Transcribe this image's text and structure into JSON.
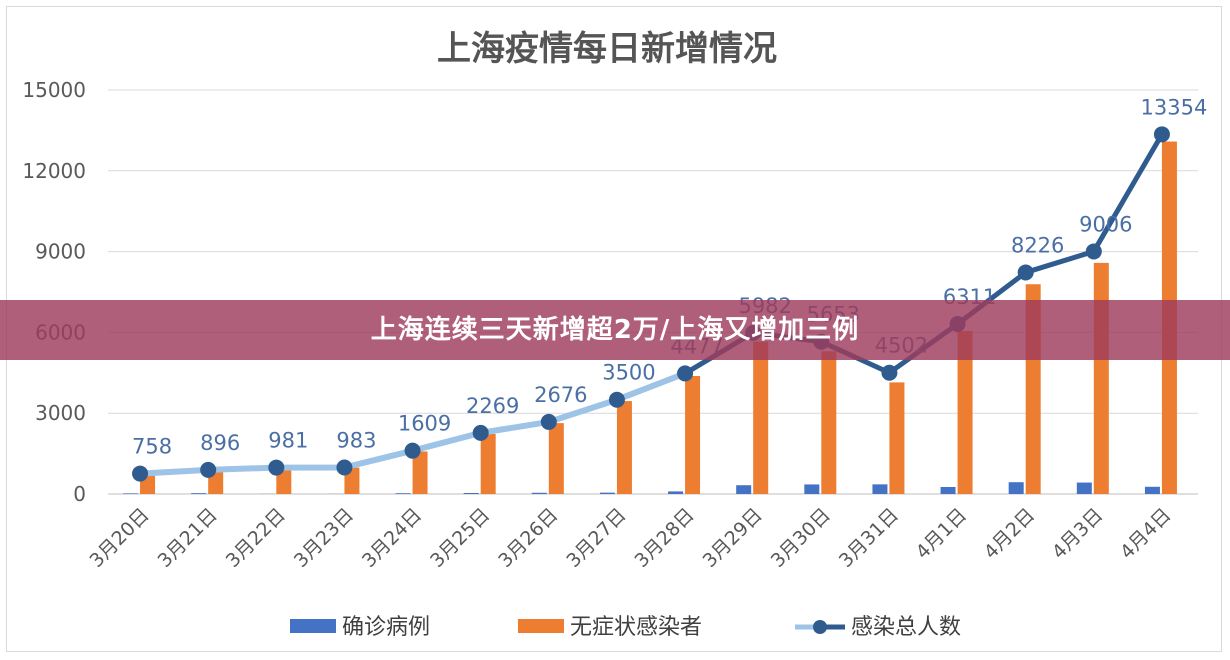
{
  "banner": {
    "text": "上海连续三天新增超2万/上海又增加三例"
  },
  "colors": {
    "confirmed": "#4472c4",
    "asymptomatic": "#ed7d31",
    "total": "#2f5b8f",
    "total_early": "#9dc3e6"
  },
  "chart_data": {
    "type": "bar",
    "title": "上海疫情每日新增情况",
    "categories": [
      "3月20日",
      "3月21日",
      "3月22日",
      "3月23日",
      "3月24日",
      "3月25日",
      "3月26日",
      "3月27日",
      "3月28日",
      "3月29日",
      "3月30日",
      "3月31日",
      "4月1日",
      "4月2日",
      "4月3日",
      "4月4日"
    ],
    "ylim": [
      0,
      15000
    ],
    "yticks": [
      "0",
      "3000",
      "6000",
      "9000",
      "12000",
      "15000"
    ],
    "grid": true,
    "legend_position": "bottom",
    "series": [
      {
        "name": "确诊病例",
        "type": "bar",
        "values": [
          24,
          31,
          4,
          4,
          29,
          38,
          45,
          50,
          96,
          326,
          355,
          358,
          260,
          438,
          425,
          268
        ]
      },
      {
        "name": "无症状感染者",
        "type": "bar",
        "values": [
          734,
          865,
          977,
          979,
          1580,
          2231,
          2631,
          3450,
          4381,
          5656,
          5298,
          4144,
          6051,
          7788,
          8581,
          13086
        ]
      },
      {
        "name": "感染总人数",
        "type": "line",
        "values": [
          758,
          896,
          981,
          983,
          1609,
          2269,
          2676,
          3500,
          4477,
          5982,
          5653,
          4502,
          6311,
          8226,
          9006,
          13354
        ],
        "labels": [
          "758",
          "896",
          "981",
          "983",
          "1609",
          "2269",
          "2676",
          "3500",
          "4477",
          "5982",
          "5653",
          "4502",
          "6311",
          "8226",
          "9006",
          "13354"
        ]
      }
    ]
  }
}
